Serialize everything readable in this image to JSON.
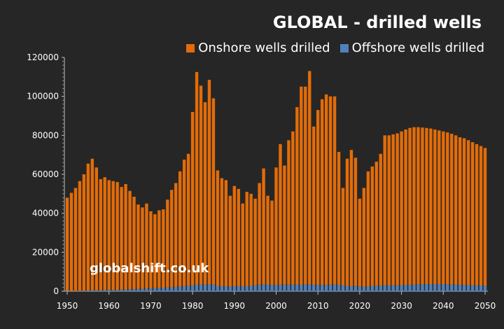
{
  "chart_data": {
    "type": "bar",
    "stacked": true,
    "title": "GLOBAL - drilled wells",
    "watermark": "globalshift.co.uk",
    "xlabel": "",
    "ylabel": "",
    "ylim": [
      0,
      120000
    ],
    "yticks": [
      "0",
      "20000",
      "40000",
      "60000",
      "80000",
      "100000",
      "120000"
    ],
    "xticks": [
      "1950",
      "1960",
      "1970",
      "1980",
      "1990",
      "2000",
      "2010",
      "2020",
      "2030",
      "2040",
      "2050"
    ],
    "legend_position": "top-right",
    "colors": {
      "onshore": "#e36c09",
      "offshore": "#4f81bd"
    },
    "x_start": 1950,
    "totals": [
      48000,
      50500,
      53000,
      56500,
      60000,
      65500,
      68000,
      63500,
      57500,
      58500,
      57000,
      56500,
      56000,
      53500,
      55000,
      51500,
      48500,
      44500,
      43000,
      45000,
      41000,
      39500,
      41500,
      42000,
      47000,
      52000,
      55500,
      61500,
      67500,
      70500,
      92000,
      112500,
      105500,
      97000,
      108500,
      99000,
      62000,
      58000,
      57000,
      49000,
      54000,
      52500,
      45000,
      51000,
      50000,
      47500,
      55500,
      63000,
      49000,
      46500,
      63500,
      75500,
      64500,
      77500,
      82000,
      94500,
      105000,
      105000,
      113000,
      84500,
      93000,
      98500,
      101000,
      100000,
      100000,
      71500,
      53000,
      68000,
      72500,
      68500,
      47500,
      53000,
      61500,
      64000,
      66500,
      70500,
      80000,
      80000,
      80500,
      81000,
      82000,
      83000,
      83800,
      84200,
      84200,
      84000,
      83800,
      83500,
      83000,
      82500,
      82000,
      81500,
      80800,
      80000,
      79000,
      78500,
      77500,
      76500,
      75500,
      74500,
      73500
    ],
    "series": [
      {
        "name": "Onshore wells drilled",
        "key": "onshore"
      },
      {
        "name": "Offshore wells drilled",
        "key": "offshore",
        "values": [
          100,
          150,
          200,
          250,
          300,
          350,
          400,
          450,
          500,
          550,
          600,
          650,
          700,
          800,
          900,
          1000,
          1100,
          1200,
          1300,
          1400,
          1500,
          1600,
          1700,
          1800,
          1900,
          2000,
          2200,
          2400,
          2600,
          2800,
          3000,
          3300,
          3500,
          3400,
          3500,
          3300,
          2700,
          2500,
          2500,
          2400,
          2500,
          2600,
          2500,
          2600,
          2700,
          3000,
          3300,
          3500,
          3400,
          3200,
          3200,
          3300,
          3300,
          3300,
          3300,
          3400,
          3400,
          3500,
          3500,
          3300,
          3200,
          3200,
          3200,
          3300,
          3400,
          3400,
          3000,
          2700,
          2600,
          2800,
          2400,
          2300,
          2500,
          2700,
          2800,
          2900,
          3000,
          3000,
          3000,
          3100,
          3100,
          3200,
          3300,
          3400,
          3500,
          3500,
          3600,
          3600,
          3600,
          3600,
          3500,
          3500,
          3400,
          3400,
          3300,
          3200,
          3100,
          3000,
          3000,
          2900,
          2800
        ]
      }
    ]
  }
}
